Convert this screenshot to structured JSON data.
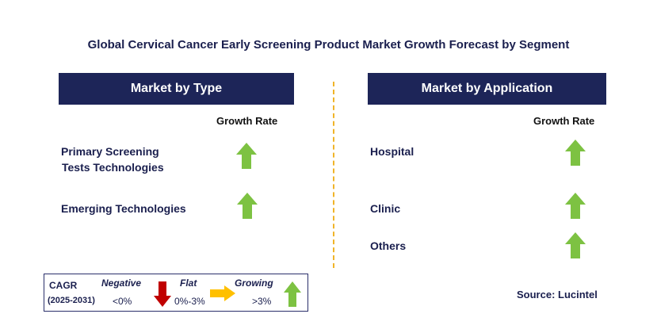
{
  "title": "Global Cervical Cancer Early Screening Product Market Growth Forecast by Segment",
  "left_panel": {
    "header": "Market by Type",
    "growth_label": "Growth Rate",
    "rows": [
      {
        "label_line1": "Primary Screening",
        "label_line2": "Tests Technologies",
        "trend": "growing"
      },
      {
        "label_line1": "Emerging Technologies",
        "trend": "growing"
      }
    ]
  },
  "right_panel": {
    "header": "Market by Application",
    "growth_label": "Growth Rate",
    "rows": [
      {
        "label": "Hospital",
        "trend": "growing"
      },
      {
        "label": "Clinic",
        "trend": "growing"
      },
      {
        "label": "Others",
        "trend": "growing"
      }
    ]
  },
  "legend": {
    "cagr_label": "CAGR",
    "period": "(2025-2031)",
    "negative_label": "Negative",
    "negative_range": "<0%",
    "flat_label": "Flat",
    "flat_range": "0%-3%",
    "growing_label": "Growing",
    "growing_range": ">3%"
  },
  "source": "Source: Lucintel",
  "colors": {
    "header_bg": "#1d2558",
    "growing": "#7dc242",
    "negative": "#c00000",
    "flat": "#ffc000",
    "divider": "#f0b429"
  }
}
